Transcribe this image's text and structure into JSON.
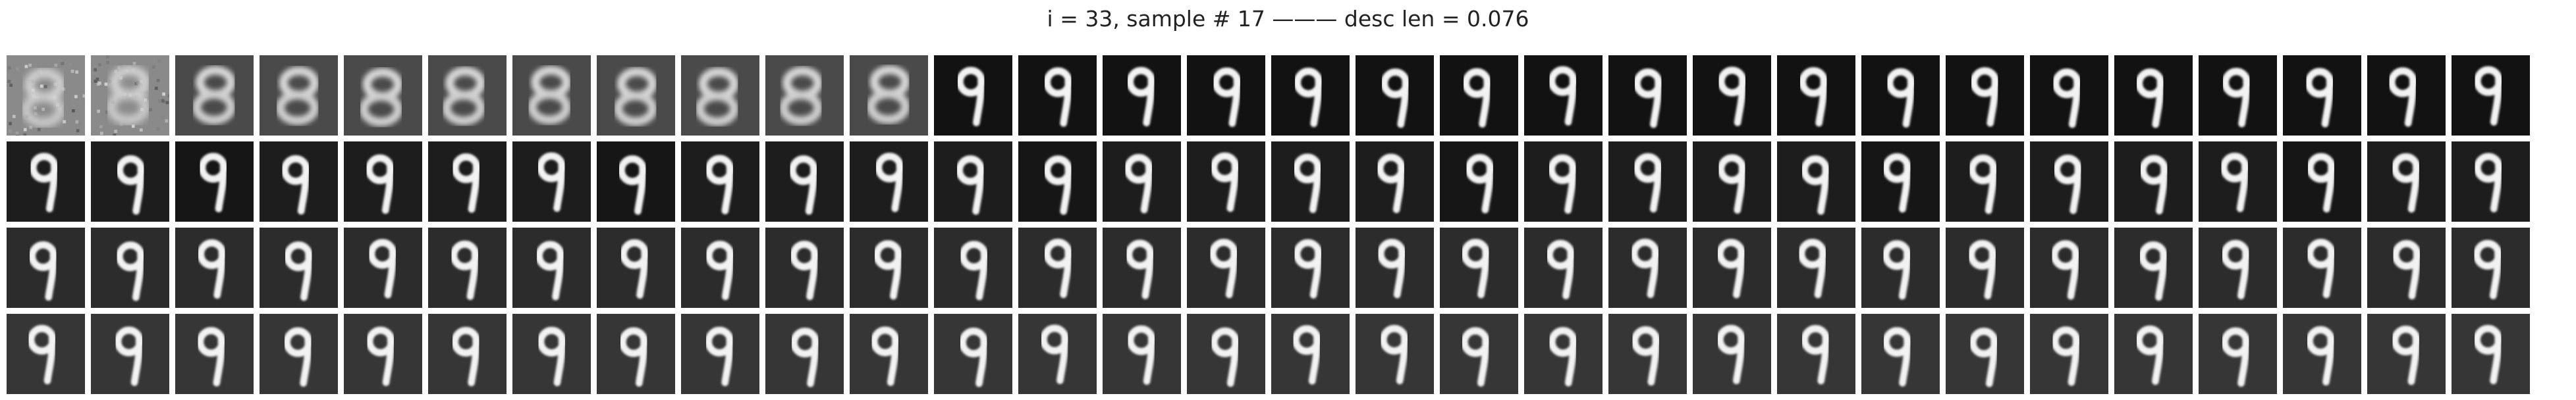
{
  "figure": {
    "title": "i = 33, sample # 17 ——— desc len = 0.076",
    "rows": 4,
    "columns": 30,
    "panel_content": "digit 9 reconstructions",
    "colors": {
      "background": "#ffffff",
      "title_text": "#222222",
      "panel_dark": "#0d0d0d",
      "panel_gray": "#3a3a3a",
      "digit_stroke": "#f2f2f2"
    }
  }
}
